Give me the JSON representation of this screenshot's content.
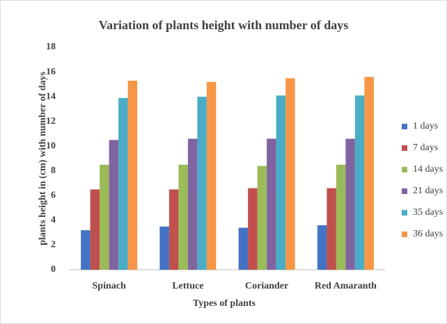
{
  "chart_data": {
    "type": "bar",
    "title": "Variation of plants height with number of days",
    "x_label": "Types of plants",
    "y_label": "plants height in (cm) with number of days",
    "categories": [
      "Spinach",
      "Lettuce",
      "Coriander",
      "Red Amaranth"
    ],
    "series": [
      {
        "name": "1 days",
        "color": "#4472c4",
        "values": [
          3.2,
          3.5,
          3.4,
          3.6
        ]
      },
      {
        "name": "7 days",
        "color": "#c0504d",
        "values": [
          6.5,
          6.5,
          6.6,
          6.6
        ]
      },
      {
        "name": "14 days",
        "color": "#9bbb59",
        "values": [
          8.5,
          8.5,
          8.4,
          8.5
        ]
      },
      {
        "name": "21 days",
        "color": "#8064a2",
        "values": [
          10.5,
          10.6,
          10.6,
          10.6
        ]
      },
      {
        "name": "35 days",
        "color": "#4bacc6",
        "values": [
          13.9,
          14.0,
          14.1,
          14.1
        ]
      },
      {
        "name": "36 days",
        "color": "#f79646",
        "values": [
          15.3,
          15.2,
          15.5,
          15.6
        ]
      }
    ],
    "ylim": [
      0,
      18
    ],
    "yticks": [
      0,
      2,
      4,
      6,
      8,
      10,
      12,
      14,
      16,
      18
    ],
    "grid": false,
    "legend": "right"
  }
}
